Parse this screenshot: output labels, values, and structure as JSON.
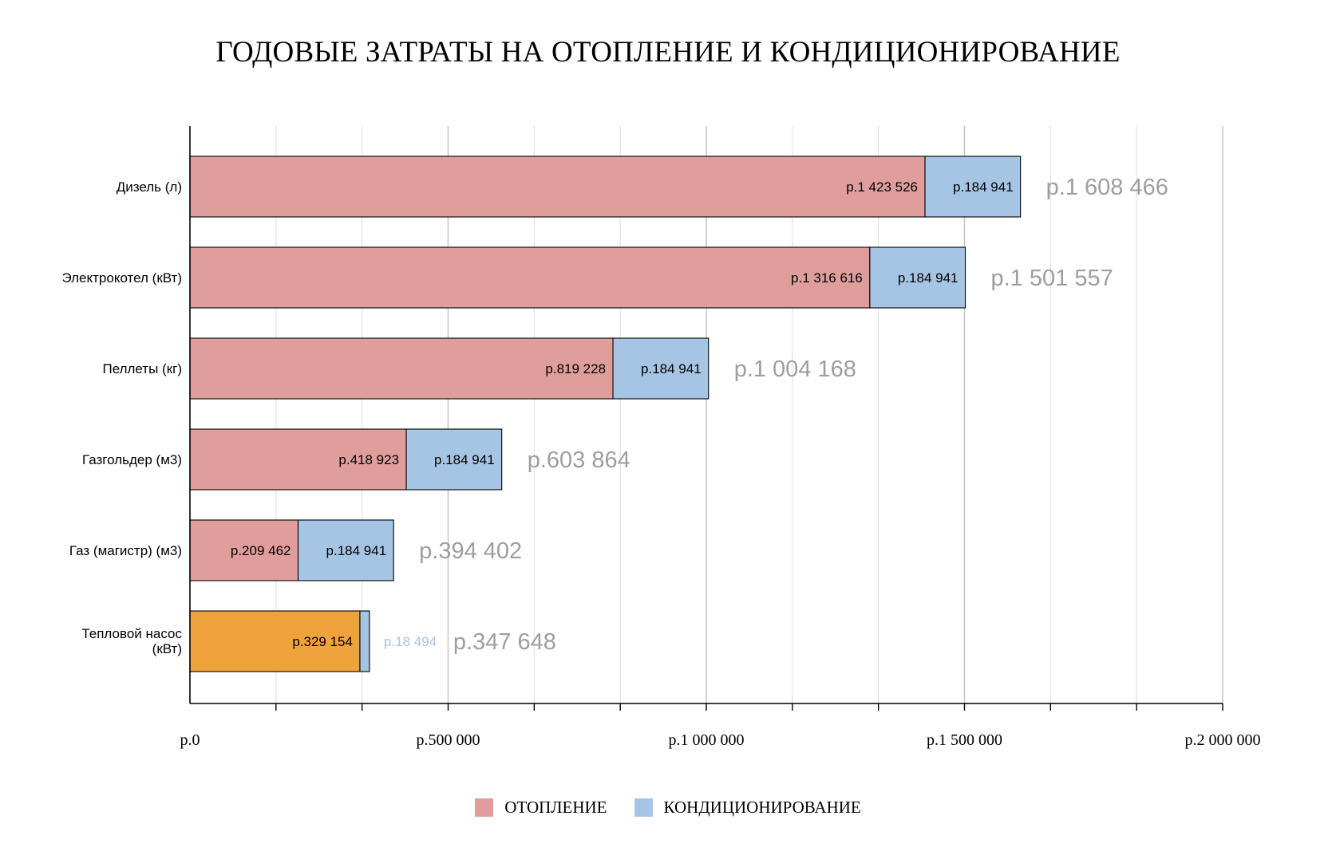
{
  "chart_data": {
    "type": "bar",
    "orientation": "horizontal",
    "stacked": true,
    "title": "ГОДОВЫЕ ЗАТРАТЫ НА ОТОПЛЕНИЕ И КОНДИЦИОНИРОВАНИЕ",
    "categories": [
      "Дизель (л)",
      "Электрокотел (кВт)",
      "Пеллеты (кг)",
      "Газгольдер (м3)",
      "Газ (магистр) (м3)",
      "Тепловой насос (кВт)"
    ],
    "series": [
      {
        "name": "ОТОПЛЕНИЕ",
        "color": "#df9e9b",
        "values": [
          1423526,
          1316616,
          819228,
          418923,
          209462,
          329154
        ],
        "labels": [
          "р.1 423 526",
          "р.1 316 616",
          "р.819 228",
          "р.418 923",
          "р.209 462",
          "р.329 154"
        ]
      },
      {
        "name": "КОНДИЦИОНИРОВАНИЕ",
        "color": "#a6c4e4",
        "values": [
          184941,
          184941,
          184941,
          184941,
          184941,
          18494
        ],
        "labels": [
          "р.184 941",
          "р.184 941",
          "р.184 941",
          "р.184 941",
          "р.184 941",
          "р.18 494"
        ]
      }
    ],
    "highlight": {
      "category_index": 5,
      "series_index": 0,
      "color": "#f0a23c"
    },
    "totals": [
      "р.1 608 466",
      "р.1 501 557",
      "р.1 004 168",
      "р.603 864",
      "р.394 402",
      "р.347 648"
    ],
    "xlim": [
      0,
      2000000
    ],
    "xticks": [
      0,
      500000,
      1000000,
      1500000,
      2000000
    ],
    "xtick_labels": [
      "р.0",
      "р.500 000",
      "р.1 000 000",
      "р.1 500 000",
      "р.2 000 000"
    ],
    "minor_grid_step": 166667,
    "grid": true,
    "legend_position": "bottom"
  }
}
